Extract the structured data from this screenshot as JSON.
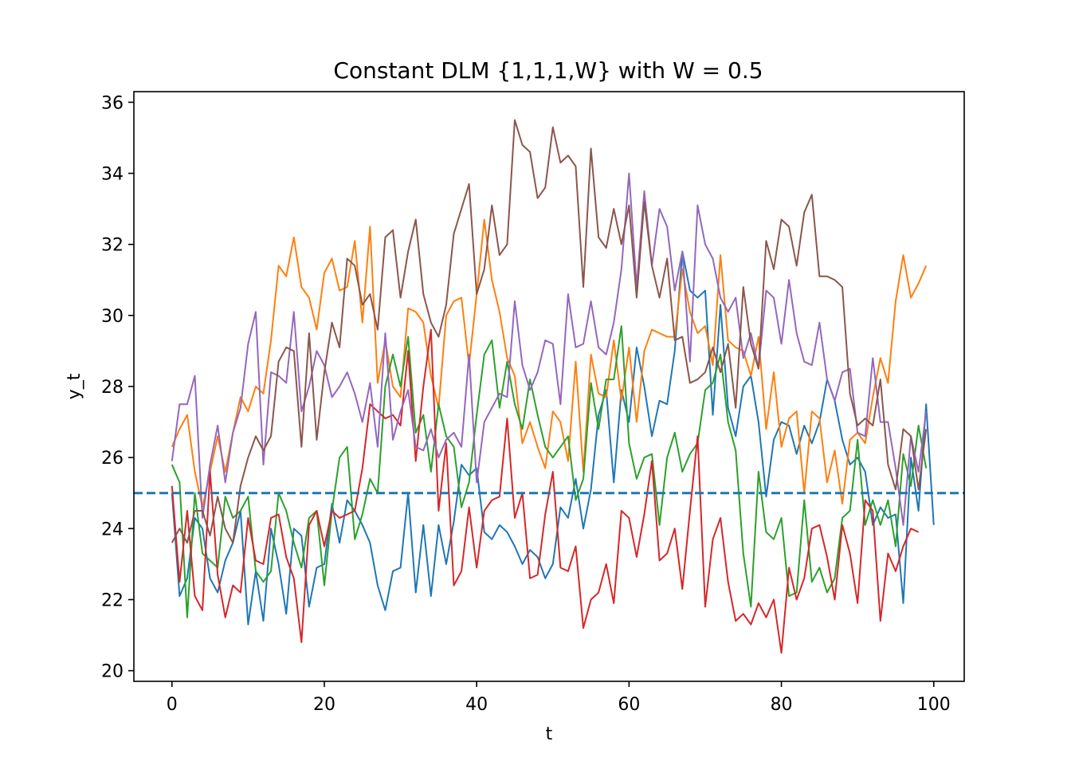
{
  "chart_data": {
    "type": "line",
    "title": "Constant DLM {1,1,1,W} with W = 0.5",
    "xlabel": "t",
    "ylabel": "y_t",
    "xlim": [
      -5,
      104
    ],
    "ylim": [
      19.7,
      36.3
    ],
    "xticks": [
      0,
      20,
      40,
      60,
      80,
      100
    ],
    "yticks": [
      20,
      22,
      24,
      26,
      28,
      30,
      32,
      34,
      36
    ],
    "grid": false,
    "legend": "none",
    "reference_line": {
      "y": 25,
      "style": "dashed",
      "color": "#1f77b4"
    },
    "series": [
      {
        "color": "#1f77b4",
        "values": [
          25.0,
          22.1,
          22.6,
          24.3,
          24.0,
          22.6,
          22.2,
          23.1,
          23.6,
          24.5,
          21.3,
          22.8,
          21.4,
          24.0,
          23.0,
          21.6,
          24.0,
          23.8,
          21.8,
          22.9,
          23.0,
          24.7,
          23.6,
          24.8,
          24.5,
          24.1,
          23.6,
          22.4,
          21.7,
          22.8,
          22.9,
          25.0,
          22.2,
          24.1,
          22.1,
          24.1,
          23.0,
          24.2,
          25.8,
          25.5,
          25.7,
          23.9,
          23.7,
          24.1,
          23.9,
          23.5,
          23.0,
          23.4,
          23.2,
          22.6,
          23.0,
          24.6,
          24.3,
          25.4,
          24.0,
          25.1,
          27.2,
          27.9,
          25.3,
          27.9,
          27.0,
          29.1,
          28.0,
          26.6,
          27.6,
          27.5,
          29.0,
          31.8,
          30.7,
          30.5,
          30.7,
          27.2,
          30.3,
          27.4,
          26.6,
          28.0,
          28.3,
          27.0,
          24.9,
          26.5,
          27.0,
          26.9,
          26.1,
          26.9,
          26.4,
          27.0,
          28.2,
          27.6,
          26.5,
          25.8,
          26.0,
          25.6,
          24.1,
          24.6,
          24.3,
          24.4,
          21.9,
          26.0,
          24.5,
          27.5,
          24.1
        ]
      },
      {
        "color": "#ff7f0e",
        "values": [
          26.3,
          26.8,
          27.2,
          25.6,
          24.6,
          25.6,
          26.6,
          25.6,
          26.7,
          27.7,
          27.3,
          28.0,
          27.8,
          29.3,
          31.4,
          31.1,
          32.2,
          30.8,
          30.5,
          29.6,
          31.2,
          31.6,
          30.7,
          30.8,
          32.1,
          29.8,
          32.5,
          28.1,
          29.3,
          28.0,
          27.7,
          30.2,
          30.1,
          29.8,
          28.3,
          27.4,
          30.0,
          30.4,
          30.5,
          28.6,
          30.6,
          32.7,
          31.0,
          30.1,
          28.8,
          28.3,
          26.4,
          27.0,
          26.3,
          25.7,
          27.3,
          27.0,
          25.9,
          28.7,
          25.6,
          28.9,
          27.8,
          27.7,
          29.3,
          27.6,
          29.1,
          27.0,
          29.0,
          29.6,
          29.5,
          29.4,
          29.4,
          31.3,
          30.1,
          29.5,
          29.7,
          28.6,
          31.7,
          29.3,
          29.1,
          29.0,
          28.3,
          29.4,
          26.8,
          28.4,
          26.3,
          27.1,
          27.3,
          25.0,
          27.3,
          27.1,
          25.3,
          26.2,
          24.7,
          26.5,
          26.7,
          26.4,
          27.7,
          28.8,
          28.1,
          30.4,
          31.7,
          30.5,
          30.9,
          31.4
        ]
      },
      {
        "color": "#2ca02c",
        "values": [
          25.8,
          25.3,
          21.5,
          25.0,
          23.3,
          23.1,
          22.9,
          24.9,
          24.3,
          24.5,
          24.9,
          22.8,
          22.5,
          22.8,
          25.0,
          24.5,
          23.6,
          22.9,
          24.3,
          24.5,
          22.4,
          24.5,
          26.0,
          26.3,
          23.7,
          24.4,
          25.4,
          25.0,
          28.0,
          28.9,
          28.0,
          29.4,
          26.7,
          27.2,
          25.6,
          27.5,
          26.6,
          26.3,
          24.6,
          25.3,
          27.2,
          28.9,
          29.3,
          27.4,
          28.7,
          27.5,
          26.8,
          28.2,
          27.2,
          26.3,
          26.0,
          26.3,
          26.6,
          24.8,
          25.4,
          28.1,
          26.8,
          28.2,
          28.2,
          29.7,
          26.4,
          25.4,
          26.0,
          26.1,
          24.1,
          26.0,
          26.7,
          25.6,
          26.1,
          26.4,
          27.9,
          28.1,
          28.9,
          27.0,
          26.2,
          23.3,
          21.8,
          25.6,
          23.9,
          23.7,
          24.3,
          22.1,
          22.2,
          24.8,
          22.5,
          22.9,
          22.2,
          22.6,
          24.3,
          24.5,
          26.5,
          24.1,
          24.8,
          24.1,
          24.8,
          23.5,
          26.1,
          25.2,
          26.9,
          25.7
        ]
      },
      {
        "color": "#d62728",
        "values": [
          25.2,
          22.5,
          24.5,
          22.1,
          21.7,
          25.6,
          22.7,
          21.5,
          22.4,
          22.2,
          24.3,
          23.1,
          23.0,
          24.3,
          24.4,
          23.2,
          22.6,
          20.8,
          24.1,
          24.5,
          23.5,
          24.5,
          24.3,
          24.4,
          24.5,
          25.7,
          27.5,
          27.3,
          27.1,
          27.2,
          26.9,
          29.0,
          25.9,
          28.0,
          29.6,
          24.5,
          26.4,
          22.4,
          22.8,
          24.6,
          22.9,
          24.5,
          24.8,
          24.9,
          27.1,
          24.3,
          25.0,
          22.6,
          22.7,
          24.4,
          25.6,
          22.9,
          22.8,
          23.5,
          21.2,
          22.0,
          22.2,
          23.0,
          21.9,
          24.5,
          24.3,
          23.2,
          24.4,
          25.9,
          23.1,
          23.3,
          24.0,
          22.3,
          24.5,
          26.6,
          21.8,
          23.7,
          24.3,
          22.5,
          21.4,
          21.6,
          21.3,
          21.9,
          21.5,
          22.0,
          20.5,
          22.9,
          22.0,
          22.6,
          24.0,
          24.1,
          23.2,
          22.0,
          24.1,
          23.3,
          21.9,
          24.8,
          24.5,
          21.4,
          23.3,
          22.8,
          23.5,
          24.0,
          23.9
        ]
      },
      {
        "color": "#9467bd",
        "values": [
          25.9,
          27.5,
          27.5,
          28.3,
          24.3,
          25.8,
          26.9,
          25.3,
          26.7,
          27.4,
          29.2,
          30.1,
          25.8,
          28.4,
          28.3,
          28.1,
          30.1,
          27.3,
          28.0,
          29.0,
          28.6,
          27.7,
          28.0,
          28.4,
          27.8,
          27.0,
          28.1,
          26.3,
          29.5,
          26.5,
          27.3,
          27.9,
          26.3,
          26.2,
          26.8,
          26.0,
          26.5,
          26.7,
          26.3,
          28.9,
          25.3,
          27.0,
          27.4,
          27.8,
          27.7,
          30.4,
          28.6,
          27.9,
          28.4,
          29.3,
          29.2,
          27.5,
          30.6,
          29.1,
          29.2,
          30.4,
          29.1,
          28.9,
          29.8,
          31.3,
          34.0,
          30.8,
          33.5,
          31.4,
          33.0,
          32.5,
          30.7,
          31.8,
          28.7,
          33.1,
          32.0,
          31.6,
          30.5,
          30.1,
          30.5,
          28.8,
          29.5,
          28.5,
          30.7,
          30.5,
          29.2,
          31.0,
          29.5,
          28.7,
          28.6,
          29.8,
          28.2,
          27.6,
          28.4,
          28.5,
          26.7,
          26.6,
          28.8,
          27.0,
          27.0,
          25.7,
          24.1,
          26.6,
          25.6,
          27.3
        ]
      },
      {
        "color": "#8c564b",
        "values": [
          23.6,
          24.0,
          23.6,
          24.5,
          24.5,
          23.8,
          24.9,
          24.0,
          23.6,
          25.2,
          26.0,
          26.6,
          26.2,
          26.6,
          28.7,
          29.1,
          29.0,
          26.3,
          29.5,
          26.5,
          28.4,
          29.8,
          29.1,
          31.6,
          31.4,
          30.3,
          30.6,
          29.6,
          32.2,
          32.4,
          30.5,
          31.8,
          32.7,
          30.6,
          29.8,
          29.4,
          30.3,
          32.3,
          33.0,
          33.7,
          30.6,
          31.3,
          33.1,
          31.7,
          32.0,
          35.5,
          34.8,
          34.6,
          33.3,
          33.6,
          35.3,
          34.3,
          34.5,
          34.2,
          30.8,
          34.7,
          32.2,
          31.9,
          33.0,
          32.0,
          33.1,
          30.5,
          33.2,
          31.4,
          30.5,
          31.6,
          29.3,
          29.4,
          28.1,
          28.2,
          28.4,
          29.1,
          28.4,
          29.2,
          27.4,
          30.8,
          29.2,
          28.5,
          32.1,
          31.3,
          32.7,
          32.5,
          31.4,
          32.9,
          33.4,
          31.1,
          31.1,
          31.0,
          30.8,
          27.8,
          26.9,
          27.1,
          26.9,
          28.2,
          25.8,
          25.1,
          26.8,
          26.6,
          25.1,
          26.8
        ]
      }
    ]
  }
}
